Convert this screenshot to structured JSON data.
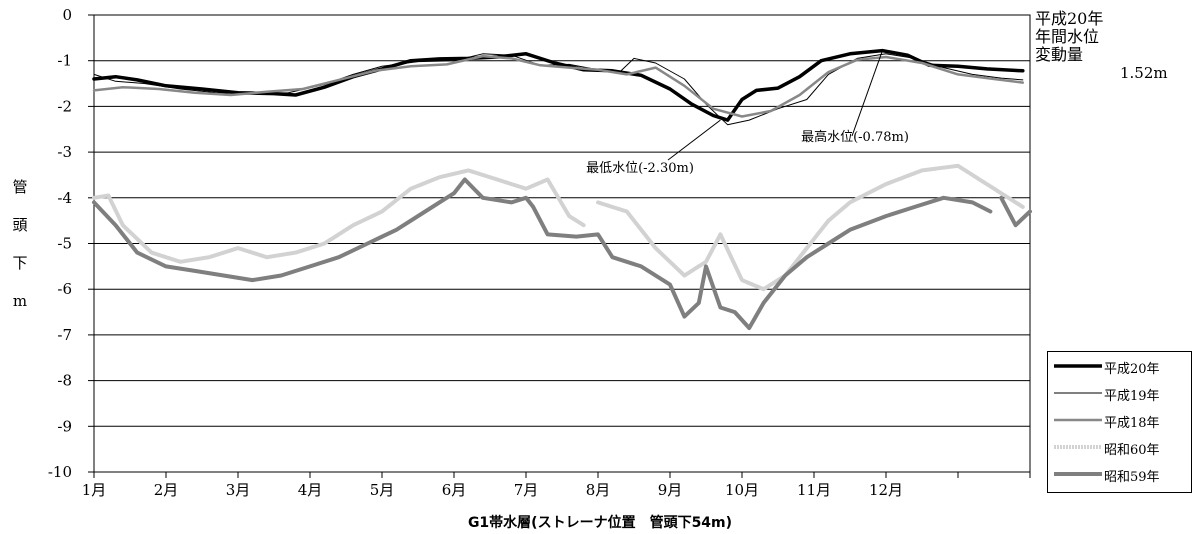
{
  "chart_data": {
    "type": "line",
    "ylabel": [
      "管",
      "頭",
      "下",
      "m"
    ],
    "xlabel": "G1帯水層(ストレーナ位置　管頭下54m)",
    "categories": [
      "1月",
      "2月",
      "3月",
      "4月",
      "5月",
      "6月",
      "7月",
      "8月",
      "9月",
      "10月",
      "11月",
      "12月"
    ],
    "ylim": [
      -10,
      0
    ],
    "yticks": [
      "0",
      "-1",
      "-2",
      "-3",
      "-4",
      "-5",
      "-6",
      "-7",
      "-8",
      "-9",
      "-10"
    ],
    "grid": true,
    "legend_position": "lower-right",
    "note": {
      "title": "平成20年",
      "line2": "年間水位",
      "line3": "変動量",
      "value": "1.52m"
    },
    "annotations": [
      {
        "text": "最高水位(-0.78m)",
        "month": 10.95,
        "value": -0.78
      },
      {
        "text": "最低水位(-2.30m)",
        "month": 8.7,
        "value": -2.3
      }
    ],
    "series": [
      {
        "name": "平成20年",
        "color": "#000000",
        "width": 3.5,
        "values": [
          [
            0,
            -1.4
          ],
          [
            0.3,
            -1.35
          ],
          [
            0.6,
            -1.42
          ],
          [
            1,
            -1.55
          ],
          [
            1.5,
            -1.62
          ],
          [
            2,
            -1.7
          ],
          [
            2.5,
            -1.72
          ],
          [
            2.8,
            -1.75
          ],
          [
            3.2,
            -1.58
          ],
          [
            3.6,
            -1.35
          ],
          [
            4,
            -1.18
          ],
          [
            4.4,
            -1.0
          ],
          [
            4.8,
            -0.96
          ],
          [
            5.2,
            -0.95
          ],
          [
            5.6,
            -0.92
          ],
          [
            6,
            -0.85
          ],
          [
            6.4,
            -1.05
          ],
          [
            6.8,
            -1.2
          ],
          [
            7.2,
            -1.22
          ],
          [
            7.6,
            -1.32
          ],
          [
            8,
            -1.62
          ],
          [
            8.3,
            -1.95
          ],
          [
            8.6,
            -2.2
          ],
          [
            8.8,
            -2.3
          ],
          [
            9,
            -1.85
          ],
          [
            9.2,
            -1.65
          ],
          [
            9.5,
            -1.6
          ],
          [
            9.8,
            -1.35
          ],
          [
            10.1,
            -1.0
          ],
          [
            10.5,
            -0.85
          ],
          [
            10.95,
            -0.78
          ],
          [
            11.3,
            -0.88
          ],
          [
            11.6,
            -1.1
          ],
          [
            12,
            -1.12
          ],
          [
            12.4,
            -1.18
          ],
          [
            12.9,
            -1.22
          ]
        ]
      },
      {
        "name": "平成19年",
        "color": "#000000",
        "width": 1,
        "values": [
          [
            0,
            -1.3
          ],
          [
            0.3,
            -1.45
          ],
          [
            0.7,
            -1.5
          ],
          [
            1.2,
            -1.62
          ],
          [
            1.7,
            -1.7
          ],
          [
            2.2,
            -1.72
          ],
          [
            2.7,
            -1.7
          ],
          [
            3.2,
            -1.52
          ],
          [
            3.6,
            -1.3
          ],
          [
            4,
            -1.12
          ],
          [
            4.5,
            -1.02
          ],
          [
            5,
            -1.0
          ],
          [
            5.4,
            -0.85
          ],
          [
            5.8,
            -0.88
          ],
          [
            6.2,
            -1.1
          ],
          [
            6.6,
            -1.08
          ],
          [
            7,
            -1.2
          ],
          [
            7.3,
            -1.25
          ],
          [
            7.5,
            -0.95
          ],
          [
            7.8,
            -1.05
          ],
          [
            8.2,
            -1.4
          ],
          [
            8.5,
            -1.95
          ],
          [
            8.8,
            -2.4
          ],
          [
            9.1,
            -2.3
          ],
          [
            9.5,
            -2.05
          ],
          [
            9.9,
            -1.85
          ],
          [
            10.2,
            -1.3
          ],
          [
            10.6,
            -0.95
          ],
          [
            11,
            -0.85
          ],
          [
            11.4,
            -0.95
          ],
          [
            11.8,
            -1.15
          ],
          [
            12.2,
            -1.3
          ],
          [
            12.6,
            -1.38
          ],
          [
            12.9,
            -1.42
          ]
        ]
      },
      {
        "name": "平成18年",
        "color": "#888888",
        "width": 2.5,
        "values": [
          [
            0,
            -1.65
          ],
          [
            0.4,
            -1.58
          ],
          [
            0.9,
            -1.62
          ],
          [
            1.4,
            -1.7
          ],
          [
            1.9,
            -1.75
          ],
          [
            2.4,
            -1.68
          ],
          [
            2.9,
            -1.62
          ],
          [
            3.4,
            -1.42
          ],
          [
            3.9,
            -1.22
          ],
          [
            4.4,
            -1.12
          ],
          [
            4.9,
            -1.08
          ],
          [
            5.4,
            -0.9
          ],
          [
            5.8,
            -0.95
          ],
          [
            6.2,
            -1.1
          ],
          [
            6.6,
            -1.15
          ],
          [
            7,
            -1.2
          ],
          [
            7.4,
            -1.3
          ],
          [
            7.8,
            -1.15
          ],
          [
            8.2,
            -1.55
          ],
          [
            8.6,
            -2.05
          ],
          [
            9,
            -2.22
          ],
          [
            9.4,
            -2.1
          ],
          [
            9.8,
            -1.75
          ],
          [
            10.2,
            -1.25
          ],
          [
            10.6,
            -0.98
          ],
          [
            11,
            -0.92
          ],
          [
            11.5,
            -1.05
          ],
          [
            12,
            -1.3
          ],
          [
            12.5,
            -1.4
          ],
          [
            12.9,
            -1.48
          ]
        ]
      },
      {
        "name": "昭和60年",
        "color": "#d2d2d2",
        "width": 4,
        "values": [
          [
            0,
            -4.0
          ],
          [
            0.2,
            -3.95
          ],
          [
            0.4,
            -4.6
          ],
          [
            0.8,
            -5.2
          ],
          [
            1.2,
            -5.4
          ],
          [
            1.6,
            -5.3
          ],
          [
            2,
            -5.1
          ],
          [
            2.4,
            -5.3
          ],
          [
            2.8,
            -5.2
          ],
          [
            3.2,
            -5.0
          ],
          [
            3.6,
            -4.6
          ],
          [
            4,
            -4.3
          ],
          [
            4.4,
            -3.8
          ],
          [
            4.8,
            -3.55
          ],
          [
            5.2,
            -3.4
          ],
          [
            5.6,
            -3.6
          ],
          [
            6,
            -3.8
          ],
          [
            6.3,
            -3.6
          ],
          [
            6.6,
            -4.4
          ],
          [
            6.8,
            -4.6
          ]
        ]
      },
      {
        "name": "昭和60年",
        "color": "#d2d2d2",
        "width": 4,
        "values": [
          [
            7,
            -4.1
          ],
          [
            7.4,
            -4.3
          ],
          [
            7.8,
            -5.1
          ],
          [
            8.2,
            -5.7
          ],
          [
            8.5,
            -5.4
          ],
          [
            8.7,
            -4.8
          ],
          [
            9,
            -5.8
          ],
          [
            9.3,
            -6.0
          ],
          [
            9.6,
            -5.7
          ],
          [
            9.9,
            -5.1
          ],
          [
            10.2,
            -4.5
          ],
          [
            10.5,
            -4.1
          ],
          [
            11,
            -3.7
          ],
          [
            11.5,
            -3.4
          ],
          [
            12,
            -3.3
          ],
          [
            12.4,
            -3.7
          ],
          [
            12.8,
            -4.1
          ],
          [
            12.9,
            -4.2
          ]
        ]
      },
      {
        "name": "昭和59年",
        "color": "#7f7f7f",
        "width": 4,
        "values": [
          [
            0,
            -4.1
          ],
          [
            0.3,
            -4.6
          ],
          [
            0.6,
            -5.2
          ],
          [
            1,
            -5.5
          ],
          [
            1.4,
            -5.6
          ],
          [
            1.8,
            -5.7
          ],
          [
            2.2,
            -5.8
          ],
          [
            2.6,
            -5.7
          ],
          [
            3,
            -5.5
          ],
          [
            3.4,
            -5.3
          ],
          [
            3.8,
            -5.0
          ],
          [
            4.2,
            -4.7
          ],
          [
            4.6,
            -4.3
          ],
          [
            5,
            -3.9
          ],
          [
            5.15,
            -3.6
          ],
          [
            5.4,
            -4.0
          ],
          [
            5.8,
            -4.1
          ],
          [
            6,
            -4.0
          ],
          [
            6.1,
            -4.2
          ],
          [
            6.3,
            -4.8
          ],
          [
            6.7,
            -4.85
          ],
          [
            7,
            -4.8
          ],
          [
            7.2,
            -5.3
          ],
          [
            7.6,
            -5.5
          ],
          [
            8,
            -5.9
          ],
          [
            8.2,
            -6.6
          ],
          [
            8.4,
            -6.3
          ],
          [
            8.5,
            -5.5
          ],
          [
            8.7,
            -6.4
          ],
          [
            8.9,
            -6.5
          ],
          [
            9.1,
            -6.85
          ],
          [
            9.3,
            -6.3
          ],
          [
            9.6,
            -5.7
          ],
          [
            9.9,
            -5.3
          ],
          [
            10.2,
            -5.0
          ],
          [
            10.5,
            -4.7
          ],
          [
            11,
            -4.4
          ],
          [
            11.4,
            -4.2
          ],
          [
            11.8,
            -4.0
          ],
          [
            12.2,
            -4.1
          ],
          [
            12.45,
            -4.3
          ]
        ]
      },
      {
        "name": "昭和59年",
        "color": "#7f7f7f",
        "width": 4,
        "values": [
          [
            12.6,
            -4.0
          ],
          [
            12.8,
            -4.6
          ],
          [
            13,
            -4.3
          ]
        ]
      }
    ],
    "legend": [
      {
        "label": "平成20年",
        "color": "#000000",
        "width": 3.5
      },
      {
        "label": "平成19年",
        "color": "#000000",
        "width": 1
      },
      {
        "label": "平成18年",
        "color": "#888888",
        "width": 2.5
      },
      {
        "label": "昭和60年",
        "color": "#d2d2d2",
        "width": 4
      },
      {
        "label": "昭和59年",
        "color": "#7f7f7f",
        "width": 4
      }
    ]
  }
}
